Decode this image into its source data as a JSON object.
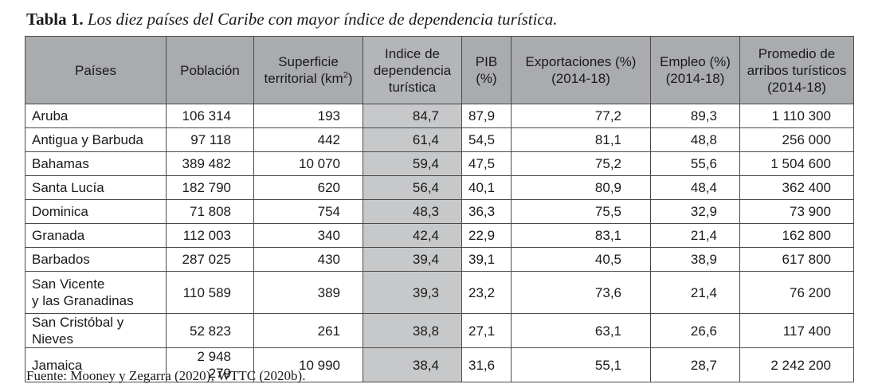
{
  "caption": {
    "label": "Tabla 1.",
    "title": "Los diez países del Caribe con mayor índice de dependencia turística."
  },
  "headers": {
    "pais": "Países",
    "poblacion": "Población",
    "superficie": "Superficie territorial (km",
    "superficie_sup": "2",
    "superficie_close": ")",
    "indice": "Indice de dependencia turística",
    "pib": "PIB (%)",
    "exportaciones": "Exportaciones (%) (2014-18)",
    "empleo": "Empleo (%) (2014-18)",
    "arribos": "Promedio de arribos turísticos (2014-18)"
  },
  "rows": [
    {
      "pais_l1": "Aruba",
      "pais_l2": "",
      "poblacion": "106 314",
      "superficie": "193",
      "indice": "84,7",
      "pib": "87,9",
      "exportaciones": "77,2",
      "empleo": "89,3",
      "arribos": "1 110 300"
    },
    {
      "pais_l1": "Antigua y Barbuda",
      "pais_l2": "",
      "poblacion": "97 118",
      "superficie": "442",
      "indice": "61,4",
      "pib": "54,5",
      "exportaciones": "81,1",
      "empleo": "48,8",
      "arribos": "256 000"
    },
    {
      "pais_l1": "Bahamas",
      "pais_l2": "",
      "poblacion": "389 482",
      "superficie": "10 070",
      "indice": "59,4",
      "pib": "47,5",
      "exportaciones": "75,2",
      "empleo": "55,6",
      "arribos": "1 504 600"
    },
    {
      "pais_l1": "Santa Lucía",
      "pais_l2": "",
      "poblacion": "182 790",
      "superficie": "620",
      "indice": "56,4",
      "pib": "40,1",
      "exportaciones": "80,9",
      "empleo": "48,4",
      "arribos": "362 400"
    },
    {
      "pais_l1": "Dominica",
      "pais_l2": "",
      "poblacion": "71 808",
      "superficie": "754",
      "indice": "48,3",
      "pib": "36,3",
      "exportaciones": "75,5",
      "empleo": "32,9",
      "arribos": "73 900"
    },
    {
      "pais_l1": "Granada",
      "pais_l2": "",
      "poblacion": "112 003",
      "superficie": "340",
      "indice": "42,4",
      "pib": "22,9",
      "exportaciones": "83,1",
      "empleo": "21,4",
      "arribos": "162 800"
    },
    {
      "pais_l1": "Barbados",
      "pais_l2": "",
      "poblacion": "287 025",
      "superficie": "430",
      "indice": "39,4",
      "pib": "39,1",
      "exportaciones": "40,5",
      "empleo": "38,9",
      "arribos": "617 800"
    },
    {
      "pais_l1": "San Vicente",
      "pais_l2": "y las Granadinas",
      "poblacion": "110 589",
      "superficie": "389",
      "indice": "39,3",
      "pib": "23,2",
      "exportaciones": "73,6",
      "empleo": "21,4",
      "arribos": "76 200"
    },
    {
      "pais_l1": "San Cristóbal y Nieves",
      "pais_l2": "",
      "poblacion": "52 823",
      "superficie": "261",
      "indice": "38,8",
      "pib": "27,1",
      "exportaciones": "63,1",
      "empleo": "26,6",
      "arribos": "117 400"
    },
    {
      "pais_l1": "Jamaica",
      "pais_l2": "",
      "poblacion": "2 948 279",
      "superficie": "10 990",
      "indice": "38,4",
      "pib": "31,6",
      "exportaciones": "55,1",
      "empleo": "28,7",
      "arribos": "2 242 200"
    }
  ],
  "source": "Fuente: Mooney y Zegarra (2020); WTTC (2020b).",
  "colors": {
    "header_bg": "#a9abae",
    "highlight_column": "#c7c8ca",
    "border": "#4a4a4a"
  }
}
